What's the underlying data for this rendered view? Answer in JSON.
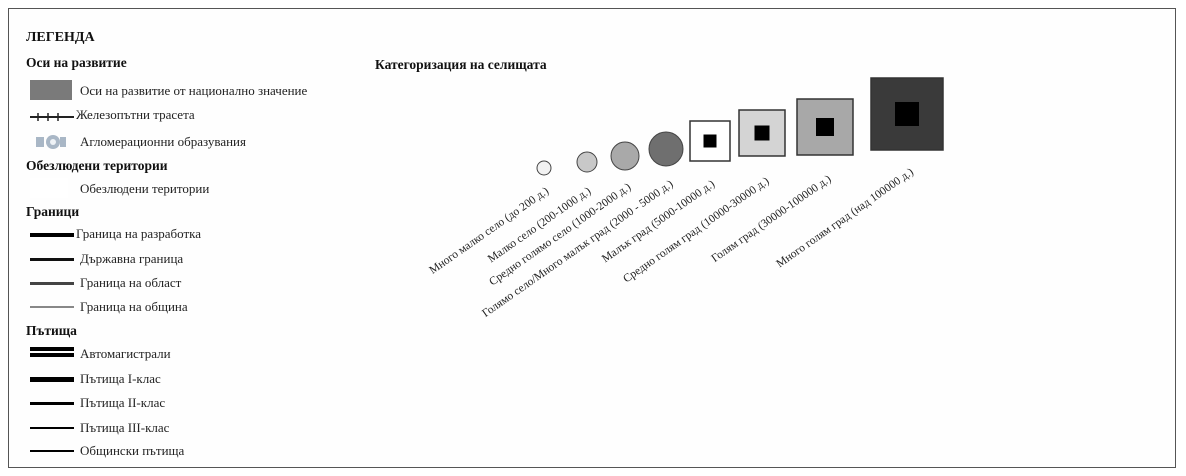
{
  "legend": {
    "title": "ЛЕГЕНДА",
    "sections": {
      "axes": {
        "heading": "Оси на развитие",
        "items": [
          {
            "label": "Оси на развитие от национално значение",
            "symbol": "grey-rectangle-icon"
          },
          {
            "label": "Железопътни трасета",
            "symbol": "railway-line-icon"
          },
          {
            "label": "Агломерационни образувания",
            "symbol": "agglomeration-icon"
          }
        ]
      },
      "depopulated": {
        "heading": "Обезлюдени територии",
        "items": [
          {
            "label": "Обезлюдени територии",
            "symbol": "empty-area-icon"
          }
        ]
      },
      "borders": {
        "heading": "Граници",
        "items": [
          {
            "label": "Граница на разработка",
            "symbol": "thick-black-line-icon"
          },
          {
            "label": "Държавна граница",
            "symbol": "black-line-icon"
          },
          {
            "label": "Граница на област",
            "symbol": "dark-grey-line-icon"
          },
          {
            "label": "Граница на община",
            "symbol": "thin-grey-line-icon"
          }
        ]
      },
      "roads": {
        "heading": "Пътища",
        "items": [
          {
            "label": "Автомагистрали",
            "symbol": "double-line-icon"
          },
          {
            "label": "Пътища I-клас",
            "symbol": "thick-line-icon"
          },
          {
            "label": "Пътища II-клас",
            "symbol": "medium-line-icon"
          },
          {
            "label": "Пътища III-клас",
            "symbol": "thin-line-icon"
          },
          {
            "label": "Общински пътища",
            "symbol": "hairline-icon"
          }
        ]
      }
    }
  },
  "categories": {
    "title": "Категоризация на селищата",
    "items": [
      {
        "label": "Много малко село (до 200 д.)",
        "shape": "circle",
        "fill": "#f2f2f2"
      },
      {
        "label": "Малко село (200-1000 д.)",
        "shape": "circle",
        "fill": "#c8c8c8"
      },
      {
        "label": "Средно голямо село (1000-2000 д.)",
        "shape": "circle",
        "fill": "#a9a9a9"
      },
      {
        "label": "Голямо село/Много малък град (2000 - 5000 д.)",
        "shape": "circle",
        "fill": "#6f6f6f"
      },
      {
        "label": "Малък град (5000-10000 д.)",
        "shape": "square",
        "fill": "#ffffff"
      },
      {
        "label": "Средно голям град (10000-30000 д.)",
        "shape": "square",
        "fill": "#d4d4d4"
      },
      {
        "label": "Голям град (30000-100000 д.)",
        "shape": "square",
        "fill": "#a8a8a8"
      },
      {
        "label": "Много голям град (над 100000 д.)",
        "shape": "square",
        "fill": "#3a3a3a"
      }
    ]
  },
  "colors": {
    "axis_band": "#7a7a7a",
    "agglomeration": "#a9b7c6",
    "border": "#555555"
  }
}
